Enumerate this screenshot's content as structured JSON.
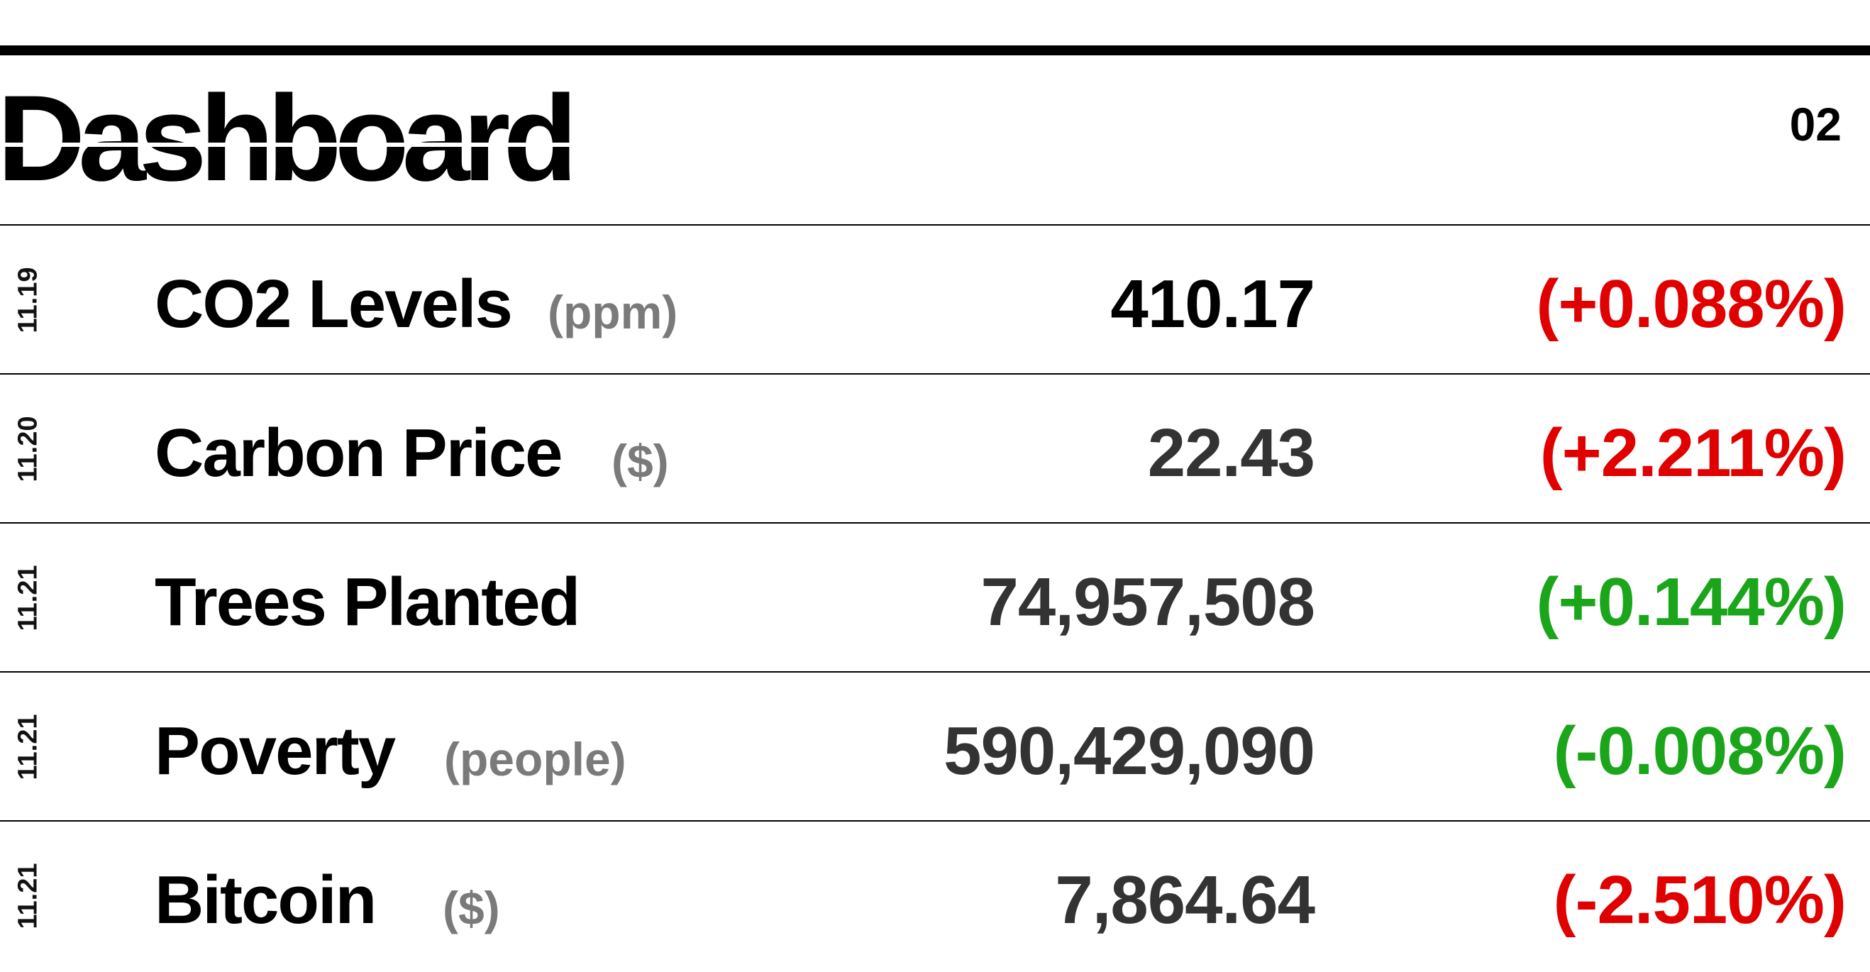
{
  "header": {
    "title": "Dashboard",
    "page_number": "02"
  },
  "colors": {
    "negative_change": "#e00000",
    "positive_change": "#1aa51a",
    "unit_gray": "#7a7a7a",
    "value_dark": "#333333"
  },
  "rows": [
    {
      "date": "11.19",
      "label": "CO2 Levels",
      "unit": "(ppm)",
      "value": "410.17",
      "change": "(+0.088%)",
      "change_color": "red"
    },
    {
      "date": "11.20",
      "label": "Carbon Price",
      "unit": "($)",
      "value": "22.43",
      "change": "(+2.211%)",
      "change_color": "red"
    },
    {
      "date": "11.21",
      "label": "Trees Planted",
      "unit": "",
      "value": "74,957,508",
      "change": "(+0.144%)",
      "change_color": "green"
    },
    {
      "date": "11.21",
      "label": "Poverty",
      "unit": "(people)",
      "value": "590,429,090",
      "change": "(-0.008%)",
      "change_color": "green"
    },
    {
      "date": "11.21",
      "label": "Bitcoin",
      "unit": "($)",
      "value": "7,864.64",
      "change": "(-2.510%)",
      "change_color": "red"
    }
  ]
}
